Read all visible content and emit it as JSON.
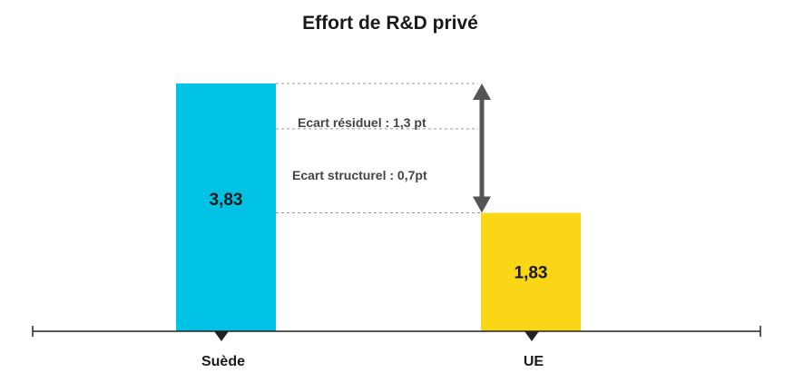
{
  "chart_data": {
    "type": "bar",
    "title": "Effort de R&D privé",
    "categories": [
      "Suède",
      "UE"
    ],
    "values": [
      3.83,
      1.83
    ],
    "value_labels": [
      "3,83",
      "1,83"
    ],
    "colors": [
      "#00c2e4",
      "#f9d616"
    ],
    "ylim": [
      0,
      4.3
    ],
    "grid": false,
    "annotations": {
      "residual": "Ecart résiduel : 1,3 pt",
      "structural": "Ecart structurel : 0,7pt",
      "structural_level": 3.13
    }
  },
  "style": {
    "axis_color": "#222222",
    "guide_color": "#999999",
    "arrow_color": "#555555"
  }
}
